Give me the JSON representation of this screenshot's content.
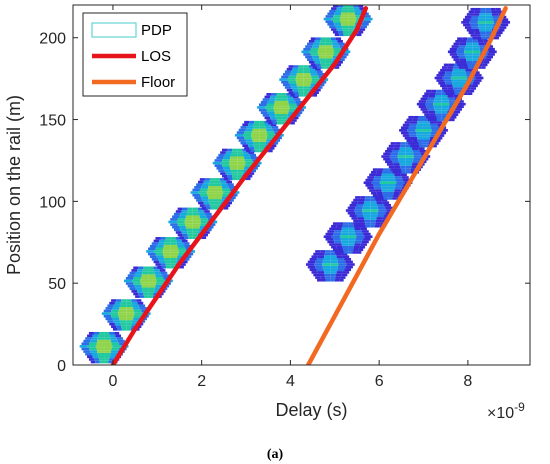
{
  "chart_data": {
    "type": "heatmap",
    "title": "",
    "xlabel": "Delay (s)",
    "ylabel": "Position on the rail (m)",
    "x_exponent_label": "×10",
    "x_exponent_power": "-9",
    "caption": "(a)",
    "xlim": [
      -0.9,
      9.4
    ],
    "ylim": [
      0,
      220
    ],
    "xticks": [
      0,
      2,
      4,
      6,
      8
    ],
    "yticks": [
      0,
      50,
      100,
      150,
      200
    ],
    "xtick_labels": [
      "0",
      "2",
      "4",
      "6",
      "8"
    ],
    "ytick_labels": [
      "0",
      "50",
      "100",
      "150",
      "200"
    ],
    "grid": false,
    "legend_position": "top-left",
    "legend": [
      {
        "name": "PDP",
        "style": "box",
        "color": "#66d4d4"
      },
      {
        "name": "LOS",
        "style": "line",
        "color": "#e8141c"
      },
      {
        "name": "Floor",
        "style": "line",
        "color": "#f26a22"
      }
    ],
    "series": [
      {
        "name": "LOS",
        "color": "#e8141c",
        "x": [
          0.0,
          0.5,
          1.0,
          1.5,
          2.0,
          2.5,
          3.0,
          3.5,
          4.0,
          4.5,
          5.0,
          5.5,
          5.7
        ],
        "y": [
          0,
          22,
          42,
          62,
          80,
          98,
          116,
          133,
          150,
          167,
          184,
          205,
          218
        ]
      },
      {
        "name": "Floor",
        "color": "#f26a22",
        "x": [
          4.4,
          5.0,
          5.5,
          6.0,
          6.5,
          7.0,
          7.5,
          8.0,
          8.5,
          8.85
        ],
        "y": [
          0,
          30,
          55,
          80,
          103,
          126,
          149,
          172,
          198,
          218
        ]
      }
    ],
    "pdp_clusters": [
      {
        "name": "LOS",
        "x": [
          -0.2,
          0.3,
          0.8,
          1.3,
          1.8,
          2.3,
          2.8,
          3.3,
          3.8,
          4.3,
          4.8,
          5.3
        ],
        "y": [
          10,
          30,
          50,
          68,
          86,
          104,
          122,
          139,
          156,
          173,
          190,
          210
        ]
      },
      {
        "name": "Floor",
        "x": [
          4.9,
          5.3,
          5.8,
          6.2,
          6.6,
          7.0,
          7.4,
          7.8,
          8.1,
          8.4
        ],
        "y": [
          60,
          77,
          93,
          110,
          126,
          142,
          158,
          174,
          190,
          208
        ]
      }
    ],
    "colormap": [
      "#3a2bd6",
      "#2b6ee8",
      "#18a8e0",
      "#22c9a0",
      "#8fd44a",
      "#e8c52a",
      "#fce21a"
    ]
  }
}
